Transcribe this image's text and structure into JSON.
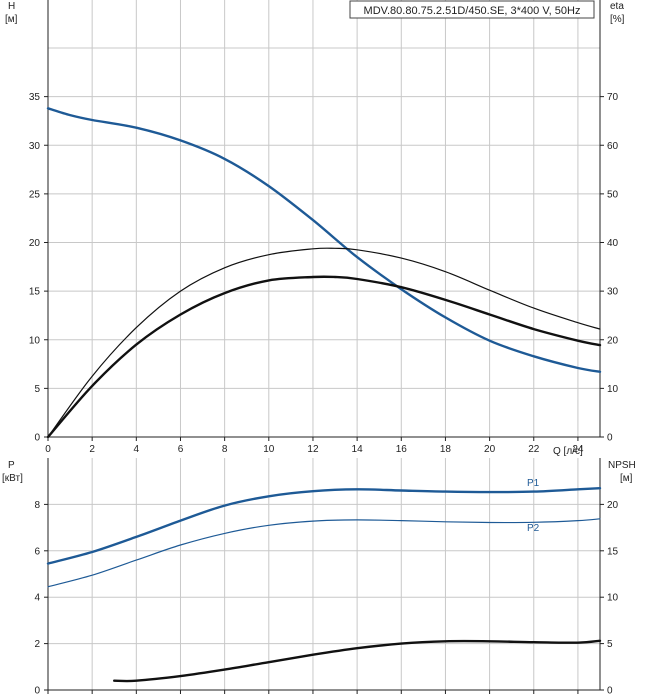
{
  "chart_data": [
    {
      "type": "line",
      "title": "MDV.80.80.75.2.51D/450.SE, 3*400 V, 50Hz",
      "xlabel": "Q [л/с]",
      "xlim": [
        0,
        25
      ],
      "xticks": [
        0,
        2,
        4,
        6,
        8,
        10,
        12,
        14,
        16,
        18,
        20,
        22,
        24
      ],
      "grid": true,
      "left_axis": {
        "label": "H",
        "unit": "[м]",
        "lim": [
          0,
          40
        ],
        "ticks": [
          0,
          5,
          10,
          15,
          20,
          25,
          30,
          35
        ]
      },
      "right_axis": {
        "label": "eta",
        "unit": "[%]",
        "lim": [
          0,
          80
        ],
        "ticks": [
          0,
          10,
          20,
          30,
          40,
          50,
          60,
          70
        ]
      },
      "series": [
        {
          "axis": "left",
          "color": "#1e5a96",
          "width": 2.4,
          "x": [
            0,
            1,
            2,
            4,
            6,
            8,
            10,
            12,
            14,
            16,
            18,
            20,
            22,
            24,
            25
          ],
          "y": [
            33.8,
            33.1,
            32.6,
            31.8,
            30.5,
            28.6,
            25.8,
            22.3,
            18.5,
            15.2,
            12.3,
            9.9,
            8.3,
            7.1,
            6.7
          ]
        },
        {
          "axis": "right",
          "color": "#111111",
          "width": 1.2,
          "x": [
            0,
            2,
            4,
            6,
            8,
            10,
            12,
            13,
            14,
            16,
            18,
            20,
            22,
            24,
            25
          ],
          "y": [
            0,
            12.5,
            22.5,
            30,
            34.8,
            37.5,
            38.7,
            38.8,
            38.5,
            36.8,
            34,
            30.2,
            26.5,
            23.5,
            22.2
          ]
        },
        {
          "axis": "right",
          "color": "#111111",
          "width": 2.4,
          "x": [
            0,
            2,
            4,
            6,
            8,
            10,
            12,
            13,
            14,
            16,
            18,
            20,
            22,
            24,
            25
          ],
          "y": [
            0,
            10.5,
            19,
            25.2,
            29.6,
            32.2,
            32.9,
            32.9,
            32.5,
            30.8,
            28.2,
            25.2,
            22.2,
            19.8,
            18.9
          ]
        }
      ]
    },
    {
      "type": "line",
      "xlim": [
        0,
        25
      ],
      "grid": true,
      "left_axis": {
        "label": "P",
        "unit": "[кВт]",
        "lim": [
          0,
          10
        ],
        "ticks": [
          0,
          2,
          4,
          6,
          8
        ]
      },
      "right_axis": {
        "label": "NPSH",
        "unit": "[м]",
        "lim": [
          0,
          25
        ],
        "ticks": [
          0,
          5,
          10,
          15,
          20
        ]
      },
      "series": [
        {
          "name": "P1",
          "axis": "left",
          "color": "#1e5a96",
          "width": 2.4,
          "x": [
            0,
            2,
            4,
            6,
            8,
            10,
            12,
            14,
            16,
            18,
            20,
            22,
            24,
            25
          ],
          "y": [
            5.45,
            5.95,
            6.6,
            7.3,
            7.95,
            8.35,
            8.57,
            8.65,
            8.6,
            8.55,
            8.53,
            8.55,
            8.65,
            8.7
          ]
        },
        {
          "name": "P2",
          "axis": "left",
          "color": "#1e5a96",
          "width": 1.2,
          "x": [
            0,
            2,
            4,
            6,
            8,
            10,
            12,
            14,
            16,
            18,
            20,
            22,
            24,
            25
          ],
          "y": [
            4.45,
            4.95,
            5.6,
            6.25,
            6.75,
            7.1,
            7.28,
            7.33,
            7.3,
            7.25,
            7.22,
            7.23,
            7.3,
            7.38
          ]
        },
        {
          "axis": "right",
          "color": "#111111",
          "width": 2.4,
          "x": [
            3,
            4,
            6,
            8,
            10,
            12,
            14,
            16,
            18,
            20,
            22,
            24,
            25
          ],
          "y": [
            1.0,
            1.0,
            1.5,
            2.2,
            3.0,
            3.8,
            4.5,
            5.0,
            5.25,
            5.25,
            5.15,
            5.1,
            5.3
          ]
        }
      ]
    }
  ]
}
